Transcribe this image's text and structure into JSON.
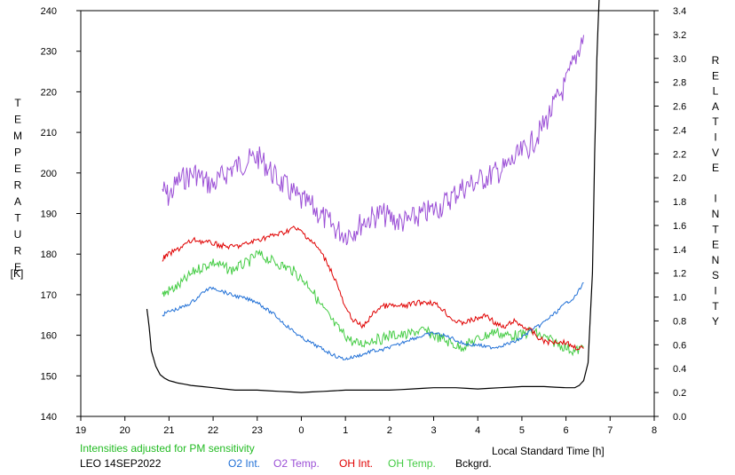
{
  "chart_data": {
    "type": "line",
    "title": "",
    "xlabel": "Local Standard Time [h]",
    "ylabel_left": "TEMPERATURE",
    "ylabel_left_unit": "[K]",
    "ylabel_right": "RELATIVE INTENSITY",
    "xlim": [
      19,
      32
    ],
    "ylim_left": [
      140,
      240
    ],
    "ylim_right": [
      0,
      3.4
    ],
    "x_tick_labels": [
      "19",
      "20",
      "21",
      "22",
      "23",
      "0",
      "1",
      "2",
      "3",
      "4",
      "5",
      "6",
      "7",
      "8"
    ],
    "y_left_ticks": [
      140,
      150,
      160,
      170,
      180,
      190,
      200,
      210,
      220,
      230,
      240
    ],
    "y_right_ticks": [
      "0.0",
      "0.2",
      "0.4",
      "0.6",
      "0.8",
      "1.0",
      "1.2",
      "1.4",
      "1.6",
      "1.8",
      "2.0",
      "2.2",
      "2.4",
      "2.6",
      "2.8",
      "3.0",
      "3.2",
      "3.4"
    ],
    "note": "Intensities adjusted for PM sensitivity",
    "station_label": "LEO 14SEP2022",
    "colors": {
      "o2_int": "#1f6fd6",
      "o2_temp": "#9b4fd6",
      "oh_int": "#e00000",
      "oh_temp": "#44cc44",
      "bckgrd": "#000000",
      "note": "#22bb22"
    },
    "series": [
      {
        "name": "O2 Int.",
        "key": "o2_int",
        "axis": "right",
        "x": [
          20.85,
          21.0,
          21.2,
          21.4,
          21.6,
          21.8,
          22.0,
          22.2,
          22.4,
          22.6,
          22.8,
          23.0,
          23.2,
          23.4,
          23.6,
          23.8,
          24.0,
          24.2,
          24.4,
          24.6,
          24.8,
          25.0,
          25.2,
          25.4,
          25.6,
          25.8,
          26.0,
          26.2,
          26.4,
          26.6,
          26.8,
          27.0,
          27.2,
          27.4,
          27.6,
          27.8,
          28.0,
          28.2,
          28.4,
          28.6,
          28.8,
          29.0,
          29.2,
          29.4,
          29.6,
          29.8,
          30.0,
          30.2,
          30.4
        ],
        "y": [
          0.85,
          0.88,
          0.9,
          0.93,
          0.98,
          1.05,
          1.08,
          1.05,
          1.02,
          1.0,
          0.98,
          0.96,
          0.9,
          0.85,
          0.78,
          0.72,
          0.66,
          0.62,
          0.58,
          0.54,
          0.5,
          0.48,
          0.5,
          0.52,
          0.55,
          0.55,
          0.58,
          0.6,
          0.64,
          0.66,
          0.68,
          0.7,
          0.68,
          0.66,
          0.62,
          0.6,
          0.6,
          0.58,
          0.58,
          0.6,
          0.62,
          0.66,
          0.72,
          0.76,
          0.82,
          0.88,
          0.95,
          1.0,
          1.12
        ]
      },
      {
        "name": "O2 Temp.",
        "key": "o2_temp",
        "axis": "left",
        "x": [
          20.85,
          21.0,
          21.2,
          21.4,
          21.6,
          21.8,
          22.0,
          22.2,
          22.4,
          22.6,
          22.8,
          23.0,
          23.2,
          23.4,
          23.6,
          23.8,
          24.0,
          24.2,
          24.4,
          24.6,
          24.8,
          25.0,
          25.2,
          25.4,
          25.6,
          25.8,
          26.0,
          26.2,
          26.4,
          26.6,
          26.8,
          27.0,
          27.2,
          27.4,
          27.6,
          27.8,
          28.0,
          28.2,
          28.4,
          28.6,
          28.8,
          29.0,
          29.2,
          29.4,
          29.6,
          29.8,
          30.0,
          30.2,
          30.4
        ],
        "y": [
          196,
          194,
          198,
          199,
          200,
          198,
          197,
          199,
          201,
          202,
          203,
          204,
          202,
          199,
          197,
          195,
          193,
          192,
          190,
          188,
          186,
          185,
          186,
          188,
          189,
          190,
          189,
          188,
          188,
          189,
          190,
          191,
          192,
          194,
          196,
          197,
          198,
          199,
          200,
          201,
          203,
          205,
          207,
          210,
          214,
          218,
          222,
          228,
          234
        ]
      },
      {
        "name": "OH Int.",
        "key": "oh_int",
        "axis": "right",
        "x": [
          20.85,
          21.0,
          21.2,
          21.4,
          21.6,
          21.8,
          22.0,
          22.2,
          22.4,
          22.6,
          22.8,
          23.0,
          23.2,
          23.4,
          23.6,
          23.8,
          24.0,
          24.2,
          24.4,
          24.6,
          24.8,
          25.0,
          25.2,
          25.4,
          25.6,
          25.8,
          26.0,
          26.2,
          26.4,
          26.6,
          26.8,
          27.0,
          27.2,
          27.4,
          27.6,
          27.8,
          28.0,
          28.2,
          28.4,
          28.6,
          28.8,
          29.0,
          29.2,
          29.4,
          29.6,
          29.8,
          30.0,
          30.2,
          30.4
        ],
        "y": [
          1.32,
          1.36,
          1.4,
          1.45,
          1.48,
          1.46,
          1.45,
          1.43,
          1.42,
          1.43,
          1.45,
          1.48,
          1.5,
          1.52,
          1.54,
          1.58,
          1.55,
          1.48,
          1.4,
          1.28,
          1.12,
          0.9,
          0.8,
          0.75,
          0.85,
          0.92,
          0.93,
          0.92,
          0.93,
          0.95,
          0.96,
          0.95,
          0.9,
          0.82,
          0.78,
          0.8,
          0.82,
          0.85,
          0.78,
          0.74,
          0.8,
          0.76,
          0.72,
          0.65,
          0.62,
          0.63,
          0.62,
          0.58,
          0.57
        ]
      },
      {
        "name": "OH Temp.",
        "key": "oh_temp",
        "axis": "left",
        "x": [
          20.85,
          21.0,
          21.2,
          21.4,
          21.6,
          21.8,
          22.0,
          22.2,
          22.4,
          22.6,
          22.8,
          23.0,
          23.2,
          23.4,
          23.6,
          23.8,
          24.0,
          24.2,
          24.4,
          24.6,
          24.8,
          25.0,
          25.2,
          25.4,
          25.6,
          25.8,
          26.0,
          26.2,
          26.4,
          26.6,
          26.8,
          27.0,
          27.2,
          27.4,
          27.6,
          27.8,
          28.0,
          28.2,
          28.4,
          28.6,
          28.8,
          29.0,
          29.2,
          29.4,
          29.6,
          29.8,
          30.0,
          30.2,
          30.4
        ],
        "y": [
          170,
          171,
          172,
          174,
          176,
          177,
          178,
          177,
          176,
          177,
          178,
          180,
          179,
          178,
          177,
          176,
          174,
          172,
          168,
          165,
          162,
          160,
          158,
          158,
          159,
          159,
          160,
          160,
          160,
          161,
          161,
          160,
          159,
          158,
          157,
          158,
          159,
          160,
          161,
          160,
          160,
          160,
          161,
          160,
          159,
          158,
          157,
          156,
          157
        ]
      },
      {
        "name": "Bckgrd.",
        "key": "bckgrd",
        "axis": "right",
        "x": [
          20.5,
          20.55,
          20.6,
          20.7,
          20.8,
          20.9,
          21.0,
          21.2,
          21.5,
          22.0,
          22.5,
          23.0,
          23.5,
          24.0,
          24.5,
          25.0,
          25.5,
          26.0,
          26.5,
          27.0,
          27.5,
          28.0,
          28.5,
          29.0,
          29.5,
          30.0,
          30.2,
          30.3,
          30.4,
          30.5,
          30.6,
          30.65,
          30.7,
          30.75
        ],
        "y": [
          0.9,
          0.75,
          0.55,
          0.42,
          0.35,
          0.32,
          0.3,
          0.28,
          0.26,
          0.24,
          0.22,
          0.22,
          0.21,
          0.2,
          0.21,
          0.22,
          0.22,
          0.22,
          0.23,
          0.24,
          0.24,
          0.23,
          0.24,
          0.25,
          0.25,
          0.24,
          0.24,
          0.26,
          0.3,
          0.45,
          1.2,
          2.2,
          3.0,
          3.5
        ]
      }
    ]
  }
}
